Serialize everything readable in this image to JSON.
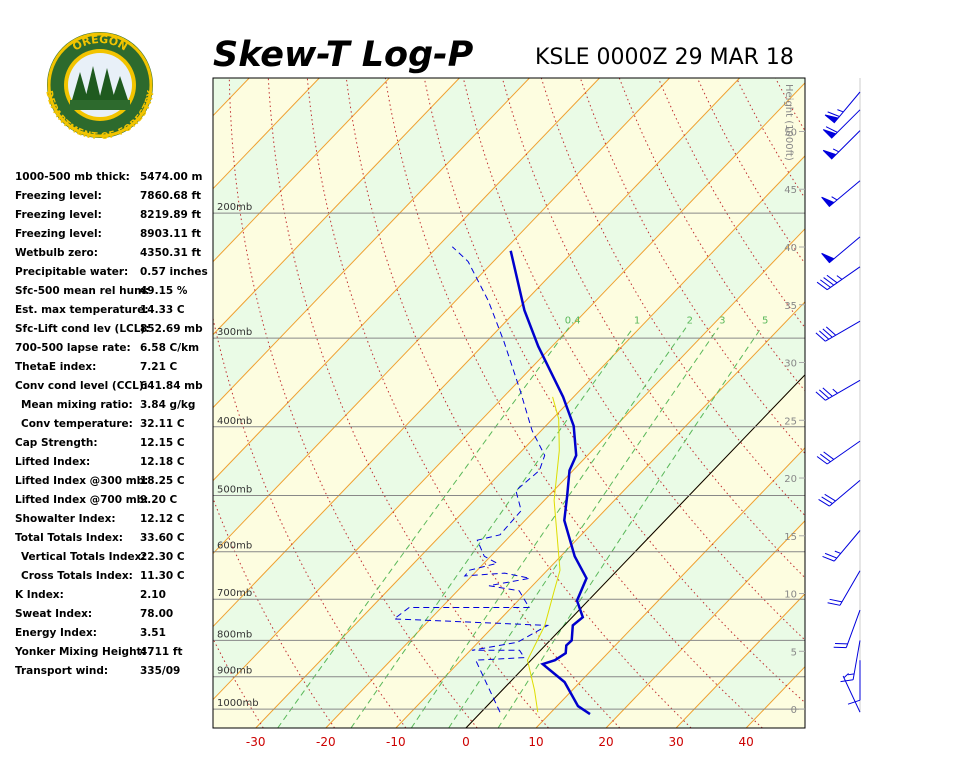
{
  "logo": {
    "top": "OREGON",
    "bottom": "DEPARTMENT OF FORESTRY"
  },
  "stats": [
    [
      "1000-500 mb thick:",
      "5474.00 m"
    ],
    [
      "Freezing level:",
      "7860.68 ft"
    ],
    [
      "Freezing level:",
      "8219.89 ft"
    ],
    [
      "Freezing level:",
      "8903.11 ft"
    ],
    [
      "Wetbulb zero:",
      "4350.31 ft"
    ],
    [
      "Precipitable water:",
      "0.57 inches"
    ],
    [
      "Sfc-500 mean rel hum:",
      "49.15 %"
    ],
    [
      "Est. max temperature:",
      "14.33 C"
    ],
    [
      "Sfc-Lift cond lev (LCL):",
      "852.69 mb"
    ],
    [
      "700-500 lapse rate:",
      "6.58 C/km"
    ],
    [
      "ThetaE index:",
      "7.21 C"
    ],
    [
      "Conv cond level (CCL):",
      "641.84 mb"
    ],
    [
      "Mean mixing ratio:",
      "3.84 g/kg"
    ],
    [
      "Conv temperature:",
      "32.11 C"
    ],
    [
      "Cap Strength:",
      "12.15 C"
    ],
    [
      "Lifted Index:",
      "12.18 C"
    ],
    [
      "Lifted Index @300 mb:",
      "18.25 C"
    ],
    [
      "Lifted Index @700 mb:",
      "9.20 C"
    ],
    [
      "Showalter Index:",
      "12.12 C"
    ],
    [
      "Total Totals Index:",
      "33.60 C"
    ],
    [
      "Vertical Totals Index:",
      "22.30 C"
    ],
    [
      "Cross Totals Index:",
      "11.30 C"
    ],
    [
      "K Index:",
      "2.10"
    ],
    [
      "Sweat Index:",
      "78.00"
    ],
    [
      "Energy Index:",
      "3.51"
    ],
    [
      "Yonker Mixing Height:",
      "4711 ft"
    ],
    [
      "Transport wind:",
      "335/09"
    ]
  ],
  "chart_data": {
    "type": "skewt",
    "title": "Skew-T Log-P",
    "subtitle": "KSLE 0000Z 29 MAR 18",
    "log_y": true,
    "ylim": [
      1063,
      129
    ],
    "yticks": [
      {
        "value": 200,
        "label": "200mb"
      },
      {
        "value": 300,
        "label": "300mb"
      },
      {
        "value": 400,
        "label": "400mb"
      },
      {
        "value": 500,
        "label": "500mb"
      },
      {
        "value": 600,
        "label": "600mb"
      },
      {
        "value": 700,
        "label": "700mb"
      },
      {
        "value": 800,
        "label": "800mb"
      },
      {
        "value": 900,
        "label": "900mb"
      },
      {
        "value": 1000,
        "label": "1000mb"
      }
    ],
    "xlim": [
      -36.1,
      48.4
    ],
    "xticks": [
      -30,
      -20,
      -10,
      0,
      10,
      20,
      30,
      40
    ],
    "y2label": "Height (1000ft)",
    "y2lim": [
      -1.64,
      54.63
    ],
    "y2ticks": [
      0,
      5,
      10,
      15,
      20,
      25,
      30,
      35,
      40,
      45,
      50
    ],
    "mixing_ratio_lines": [
      0.4,
      1,
      2,
      3,
      5
    ],
    "series": [
      {
        "color": "#0000cc",
        "dashed": false,
        "pressure": [
          1016,
          990,
          916,
          864,
          853,
          834,
          813,
          800,
          762,
          742,
          703,
          654,
          609,
          542,
          500,
          461,
          439,
          399,
          363,
          308,
          274,
          226
        ],
        "values": [
          15.8,
          13.0,
          7.8,
          2.2,
          3.4,
          4.0,
          3.0,
          3.1,
          1.2,
          1.5,
          -1.6,
          -3.3,
          -8.0,
          -14.4,
          -17.4,
          -20.5,
          -21.6,
          -26.0,
          -31.5,
          -42.0,
          -48.9,
          -59.0
        ]
      },
      {
        "color": "#0000dd",
        "dashed": true,
        "pressure": [
          1010,
          853,
          846,
          826,
          826,
          805,
          762,
          746,
          719,
          719,
          681,
          670,
          654,
          643,
          649,
          637,
          623,
          609,
          578,
          568,
          525,
          492,
          461,
          439,
          405,
          355,
          303,
          266,
          234,
          223
        ],
        "values": [
          2.7,
          -7.9,
          -1.3,
          -3.0,
          -9.8,
          -4.4,
          -2.4,
          -25.2,
          -24.6,
          -7.5,
          -11.2,
          -16.2,
          -11.4,
          -15.7,
          -21.0,
          -21.1,
          -18.1,
          -20.9,
          -24.1,
          -21.6,
          -21.9,
          -25.4,
          -24.8,
          -26.1,
          -31.3,
          -38.6,
          -47.6,
          -55.3,
          -63.6,
          -67.9
        ]
      },
      {
        "color": "#dddd00",
        "dashed": false,
        "pressure": [
          1010,
          940,
          853,
          762,
          681,
          637,
          508,
          432,
          390,
          363
        ],
        "values": [
          8.1,
          4.6,
          -0.5,
          -2.8,
          -6.2,
          -8.2,
          -18.6,
          -24.7,
          -29.1,
          -33.0
        ]
      }
    ],
    "winds": {
      "pressure": [
        135,
        143,
        153,
        180,
        216,
        238,
        284,
        344,
        419,
        476,
        560,
        638,
        725,
        800,
        853,
        1010
      ],
      "direction": [
        220,
        225,
        225,
        230,
        230,
        235,
        240,
        240,
        235,
        230,
        220,
        210,
        200,
        190,
        180,
        335
      ],
      "speed": [
        65,
        60,
        55,
        55,
        50,
        45,
        40,
        35,
        30,
        30,
        25,
        20,
        20,
        15,
        10,
        9
      ]
    }
  }
}
